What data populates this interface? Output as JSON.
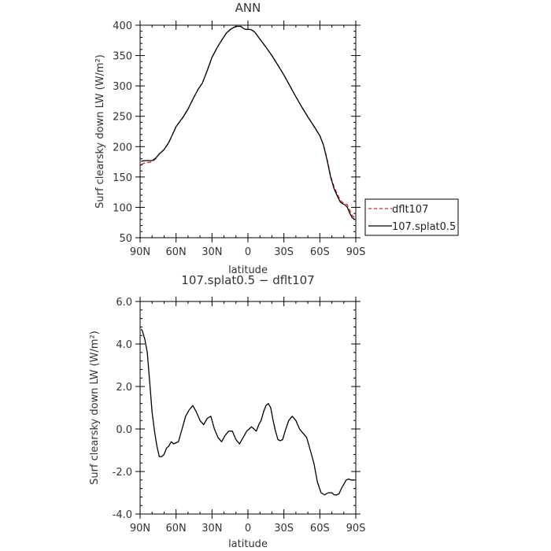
{
  "chart_data": [
    {
      "type": "line",
      "title": "ANN",
      "xlabel": "latitude",
      "ylabel": "Surf clearsky down LW (W/m²)",
      "x_ticks": [
        90,
        60,
        30,
        0,
        -30,
        -60,
        -90
      ],
      "x_tick_labels": [
        "90N",
        "60N",
        "30N",
        "0",
        "30S",
        "60S",
        "90S"
      ],
      "xlim": [
        90,
        -90
      ],
      "ylim": [
        50,
        400
      ],
      "y_ticks": [
        50,
        100,
        150,
        200,
        250,
        300,
        350,
        400
      ],
      "y_tick_labels": [
        "50",
        "100",
        "150",
        "200",
        "250",
        "300",
        "350",
        "400"
      ],
      "legend_position": "right",
      "series": [
        {
          "name": "dflt107",
          "color": "#d62728",
          "dash": "dashed",
          "x": [
            89,
            86,
            83,
            80,
            77,
            74,
            70,
            66,
            63,
            60,
            57,
            54,
            50,
            46,
            42,
            38,
            34,
            30,
            26,
            22,
            18,
            14,
            10,
            6,
            4,
            2,
            0,
            -2,
            -4,
            -6,
            -10,
            -15,
            -20,
            -25,
            -30,
            -35,
            -40,
            -45,
            -50,
            -55,
            -60,
            -63,
            -66,
            -69,
            -72,
            -75,
            -77,
            -79,
            -81,
            -83,
            -85,
            -87,
            -89
          ],
          "values": [
            171,
            173,
            174,
            175,
            180,
            188,
            195,
            207,
            220,
            233,
            241,
            249,
            262,
            278,
            293,
            305,
            325,
            347,
            362,
            375,
            387,
            394,
            398,
            398,
            395,
            393,
            393,
            393,
            391,
            388,
            377,
            364,
            350,
            334,
            318,
            300,
            282,
            265,
            249,
            234,
            218,
            203,
            180,
            152,
            133,
            120,
            112,
            108,
            107,
            104,
            95,
            87,
            83
          ]
        },
        {
          "name": "107.splat0.5",
          "color": "#000000",
          "dash": "solid",
          "x": [
            89,
            86,
            83,
            80,
            77,
            74,
            70,
            66,
            63,
            60,
            57,
            54,
            50,
            46,
            42,
            38,
            34,
            30,
            26,
            22,
            18,
            14,
            10,
            6,
            4,
            2,
            0,
            -2,
            -4,
            -6,
            -10,
            -15,
            -20,
            -25,
            -30,
            -35,
            -40,
            -45,
            -50,
            -55,
            -60,
            -63,
            -66,
            -69,
            -72,
            -75,
            -77,
            -79,
            -81,
            -83,
            -85,
            -87,
            -89
          ],
          "values": [
            176,
            177,
            177,
            177,
            181,
            188,
            195,
            207,
            220,
            233,
            241,
            249,
            262,
            278,
            293,
            305,
            325,
            347,
            362,
            375,
            387,
            394,
            398,
            398,
            395,
            393,
            393,
            393,
            391,
            388,
            377,
            364,
            350,
            334,
            318,
            300,
            282,
            265,
            249,
            234,
            218,
            203,
            178,
            150,
            130,
            117,
            109,
            106,
            104,
            100,
            90,
            83,
            80
          ]
        }
      ]
    },
    {
      "type": "line",
      "title": "107.splat0.5 − dflt107",
      "xlabel": "latitude",
      "ylabel": "Surf clearsky down LW (W/m²)",
      "x_ticks": [
        90,
        60,
        30,
        0,
        -30,
        -60,
        -90
      ],
      "x_tick_labels": [
        "90N",
        "60N",
        "30N",
        "0",
        "30S",
        "60S",
        "90S"
      ],
      "xlim": [
        90,
        -90
      ],
      "ylim": [
        -4,
        6
      ],
      "y_ticks": [
        -4,
        -2,
        0,
        2,
        4,
        6
      ],
      "y_tick_labels": [
        "-4.0",
        "-2.0",
        "0.0",
        "2.0",
        "4.0",
        "6.0"
      ],
      "series": [
        {
          "color": "#000000",
          "dash": "solid",
          "x": [
            89,
            88,
            86,
            84,
            82,
            80,
            78,
            76,
            74,
            72,
            70,
            68,
            66,
            64,
            62,
            60,
            58,
            55,
            52,
            49,
            46,
            43,
            40,
            37,
            34,
            31,
            28,
            25,
            22,
            19,
            16,
            13,
            10,
            7,
            4,
            1,
            -1,
            -3,
            -5,
            -7,
            -9,
            -11,
            -13,
            -15,
            -17,
            -19,
            -21,
            -23,
            -25,
            -27,
            -29,
            -31,
            -34,
            -37,
            -40,
            -43,
            -46,
            -49,
            -52,
            -55,
            -58,
            -61,
            -64,
            -67,
            -70,
            -72,
            -74,
            -76,
            -78,
            -80,
            -82,
            -84,
            -86,
            -88,
            -89
          ],
          "values": [
            4.7,
            4.6,
            4.2,
            3.6,
            2.2,
            0.8,
            -0.1,
            -0.8,
            -1.3,
            -1.3,
            -1.2,
            -0.9,
            -0.8,
            -0.6,
            -0.7,
            -0.65,
            -0.6,
            0.0,
            0.6,
            0.9,
            1.1,
            0.8,
            0.4,
            0.2,
            0.5,
            0.6,
            0.0,
            -0.4,
            -0.6,
            -0.3,
            -0.1,
            -0.1,
            -0.5,
            -0.7,
            -0.4,
            -0.1,
            0.0,
            0.1,
            0.0,
            -0.1,
            0.2,
            0.4,
            0.8,
            1.1,
            1.2,
            1.0,
            0.4,
            -0.1,
            -0.5,
            -0.55,
            -0.5,
            -0.1,
            0.4,
            0.6,
            0.4,
            0.0,
            -0.2,
            -0.4,
            -1.0,
            -1.6,
            -2.5,
            -3.0,
            -3.1,
            -3.0,
            -3.0,
            -3.1,
            -3.1,
            -3.05,
            -2.8,
            -2.6,
            -2.4,
            -2.35,
            -2.4,
            -2.4,
            -2.4
          ]
        }
      ]
    }
  ]
}
